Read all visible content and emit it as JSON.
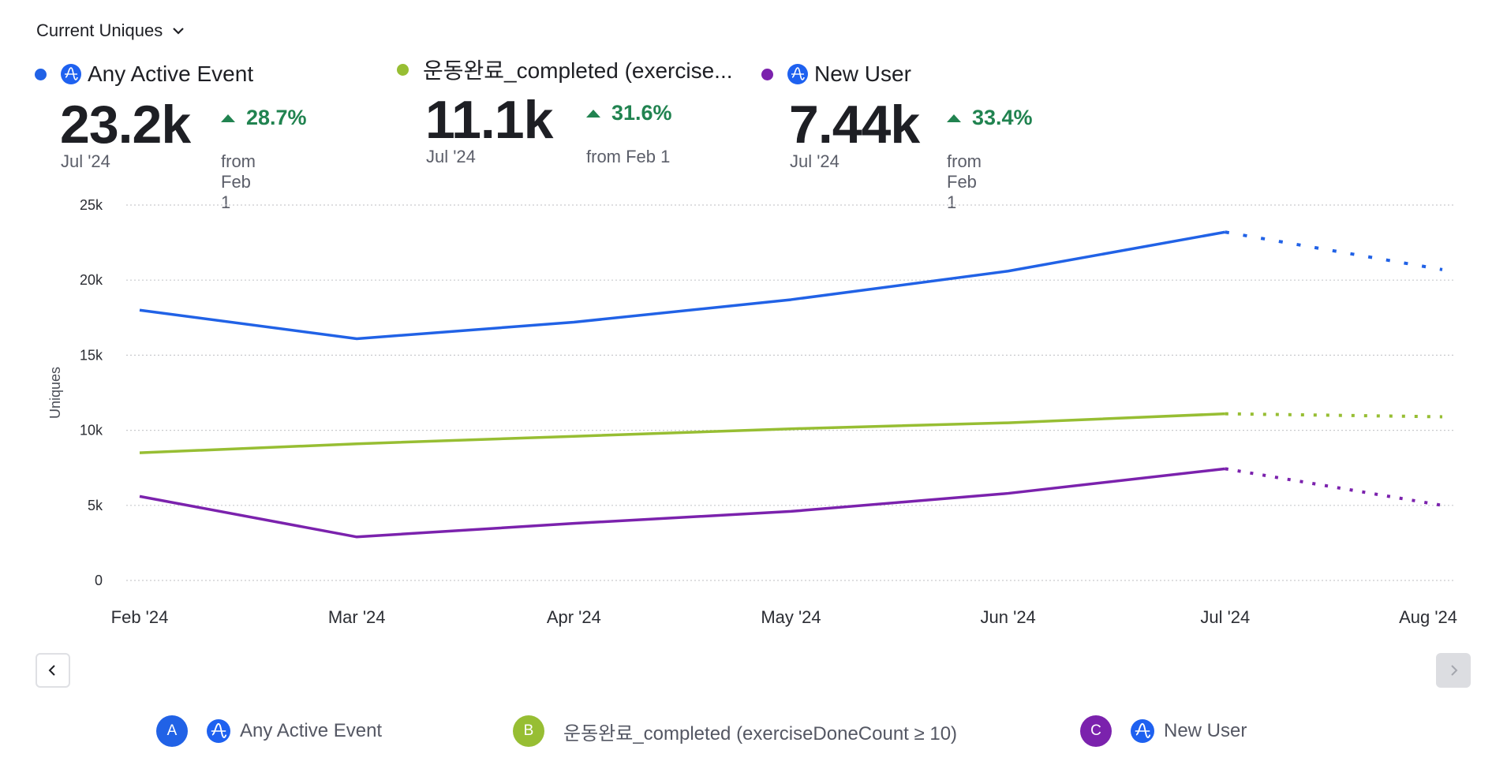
{
  "metric_selector": {
    "label": "Current Uniques",
    "icon": "chevron-down-icon"
  },
  "colors": {
    "blue": "#2162e6",
    "green": "#97be33",
    "purple": "#7b22ad",
    "positive": "#218350",
    "amp_icon": "#1e61f0"
  },
  "summaries": [
    {
      "series": "Any Active Event",
      "has_amp_icon": true,
      "value": "23.2k",
      "period": "Jul '24",
      "change": "28.7%",
      "direction": "up",
      "from": "from Feb 1"
    },
    {
      "series": "운동완료_completed (exercise...",
      "has_amp_icon": false,
      "value": "11.1k",
      "period": "Jul '24",
      "change": "31.6%",
      "direction": "up",
      "from": "from Feb 1"
    },
    {
      "series": "New User",
      "has_amp_icon": true,
      "value": "7.44k",
      "period": "Jul '24",
      "change": "33.4%",
      "direction": "up",
      "from": "from Feb 1"
    }
  ],
  "navigation": {
    "prev_icon": "chevron-left-icon",
    "next_icon": "chevron-right-icon",
    "next_disabled": true
  },
  "legend": [
    {
      "badge": "A",
      "label": "Any Active Event",
      "has_amp_icon": true
    },
    {
      "badge": "B",
      "label": "운동완료_completed (exerciseDoneCount ≥ 10)",
      "has_amp_icon": false
    },
    {
      "badge": "C",
      "label": "New User",
      "has_amp_icon": true
    }
  ],
  "chart_data": {
    "type": "line",
    "title": "",
    "xlabel": "",
    "ylabel": "Uniques",
    "categories": [
      "Feb '24",
      "Mar '24",
      "Apr '24",
      "May '24",
      "Jun '24",
      "Jul '24",
      "Aug '24"
    ],
    "ylim": [
      0,
      25000
    ],
    "yticks": [
      0,
      5000,
      10000,
      15000,
      20000,
      25000
    ],
    "ytick_labels": [
      "0",
      "5k",
      "10k",
      "15k",
      "20k",
      "25k"
    ],
    "grid": true,
    "incomplete_from_index": 5,
    "series": [
      {
        "name": "Any Active Event",
        "color": "#2162e6",
        "values": [
          18000,
          16100,
          17200,
          18700,
          20600,
          23200,
          20700
        ]
      },
      {
        "name": "운동완료_completed (exerciseDoneCount ≥ 10)",
        "color": "#97be33",
        "values": [
          8500,
          9100,
          9600,
          10100,
          10500,
          11100,
          10900
        ]
      },
      {
        "name": "New User",
        "color": "#7b22ad",
        "values": [
          5600,
          2900,
          3800,
          4600,
          5800,
          7440,
          5000
        ]
      }
    ]
  }
}
